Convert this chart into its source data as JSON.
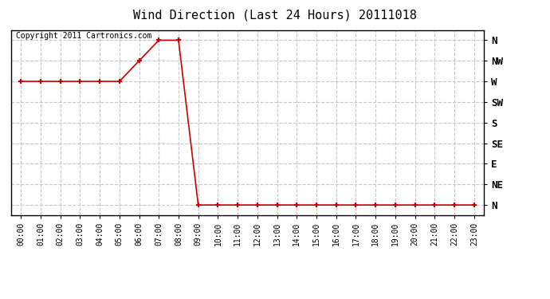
{
  "title": "Wind Direction (Last 24 Hours) 20111018",
  "copyright_text": "Copyright 2011 Cartronics.com",
  "background_color": "#ffffff",
  "plot_bg_color": "#ffffff",
  "grid_color": "#c8c8c8",
  "line_color": "#cc0000",
  "marker_color": "#cc0000",
  "ytick_labels_top_to_bottom": [
    "N",
    "NW",
    "W",
    "SW",
    "S",
    "SE",
    "E",
    "NE",
    "N"
  ],
  "ytick_positions": [
    8,
    7,
    6,
    5,
    4,
    3,
    2,
    1,
    0
  ],
  "hours": [
    0,
    1,
    2,
    3,
    4,
    5,
    6,
    7,
    8,
    9,
    10,
    11,
    12,
    13,
    14,
    15,
    16,
    17,
    18,
    19,
    20,
    21,
    22,
    23
  ],
  "wind_data": [
    6,
    6,
    6,
    6,
    6,
    6,
    7,
    8,
    8,
    0,
    0,
    0,
    0,
    0,
    0,
    0,
    0,
    0,
    0,
    0,
    0,
    0,
    0,
    0
  ],
  "xlim": [
    -0.5,
    23.5
  ],
  "ylim": [
    -0.5,
    8.5
  ],
  "figsize": [
    6.9,
    3.75
  ],
  "dpi": 100
}
